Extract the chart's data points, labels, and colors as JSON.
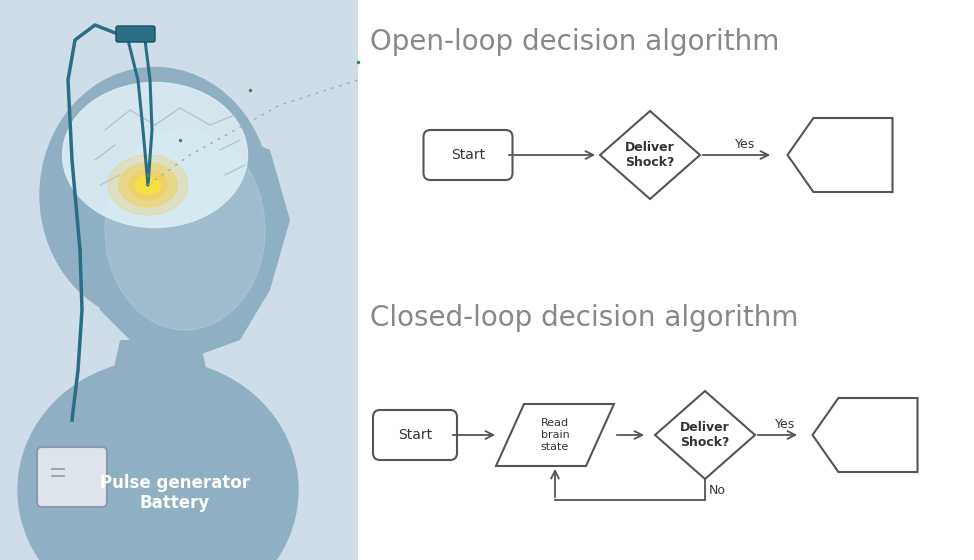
{
  "bg_color": "#ffffff",
  "left_panel_bg": "#cfdde8",
  "title_open": "Open-loop decision algorithm",
  "title_closed": "Closed-loop decision algorithm",
  "title_color": "#888888",
  "title_fontsize": 20,
  "shape_edge_color": "#555555",
  "shape_lw": 1.5,
  "arrow_color": "#555555",
  "text_color": "#333333",
  "text_fontsize": 10,
  "label_yes": "Yes",
  "label_no": "No",
  "open_start_label": "Start",
  "open_diamond_label": "Deliver\nShock?",
  "closed_start_label": "Start",
  "closed_parallelogram_label": "Read\nbrain\nstate",
  "closed_diamond_label": "Deliver\nShock?",
  "pulse_gen_label": "Pulse generator\nBattery",
  "head_color": "#8fafc2",
  "head_light": "#b8cdd9",
  "brain_color": "#ddedf5",
  "brain_outline": "#a8c0ce",
  "glow_outer": "#f0d060",
  "glow_inner": "#f8e040",
  "lead_color": "#2a6e85",
  "wire_color": "#2a6e85",
  "dbs_dot_color": "#3a8a5a",
  "readout_color": "#aaaaaa",
  "device_face": "#dde5ea",
  "device_edge": "#8899aa"
}
